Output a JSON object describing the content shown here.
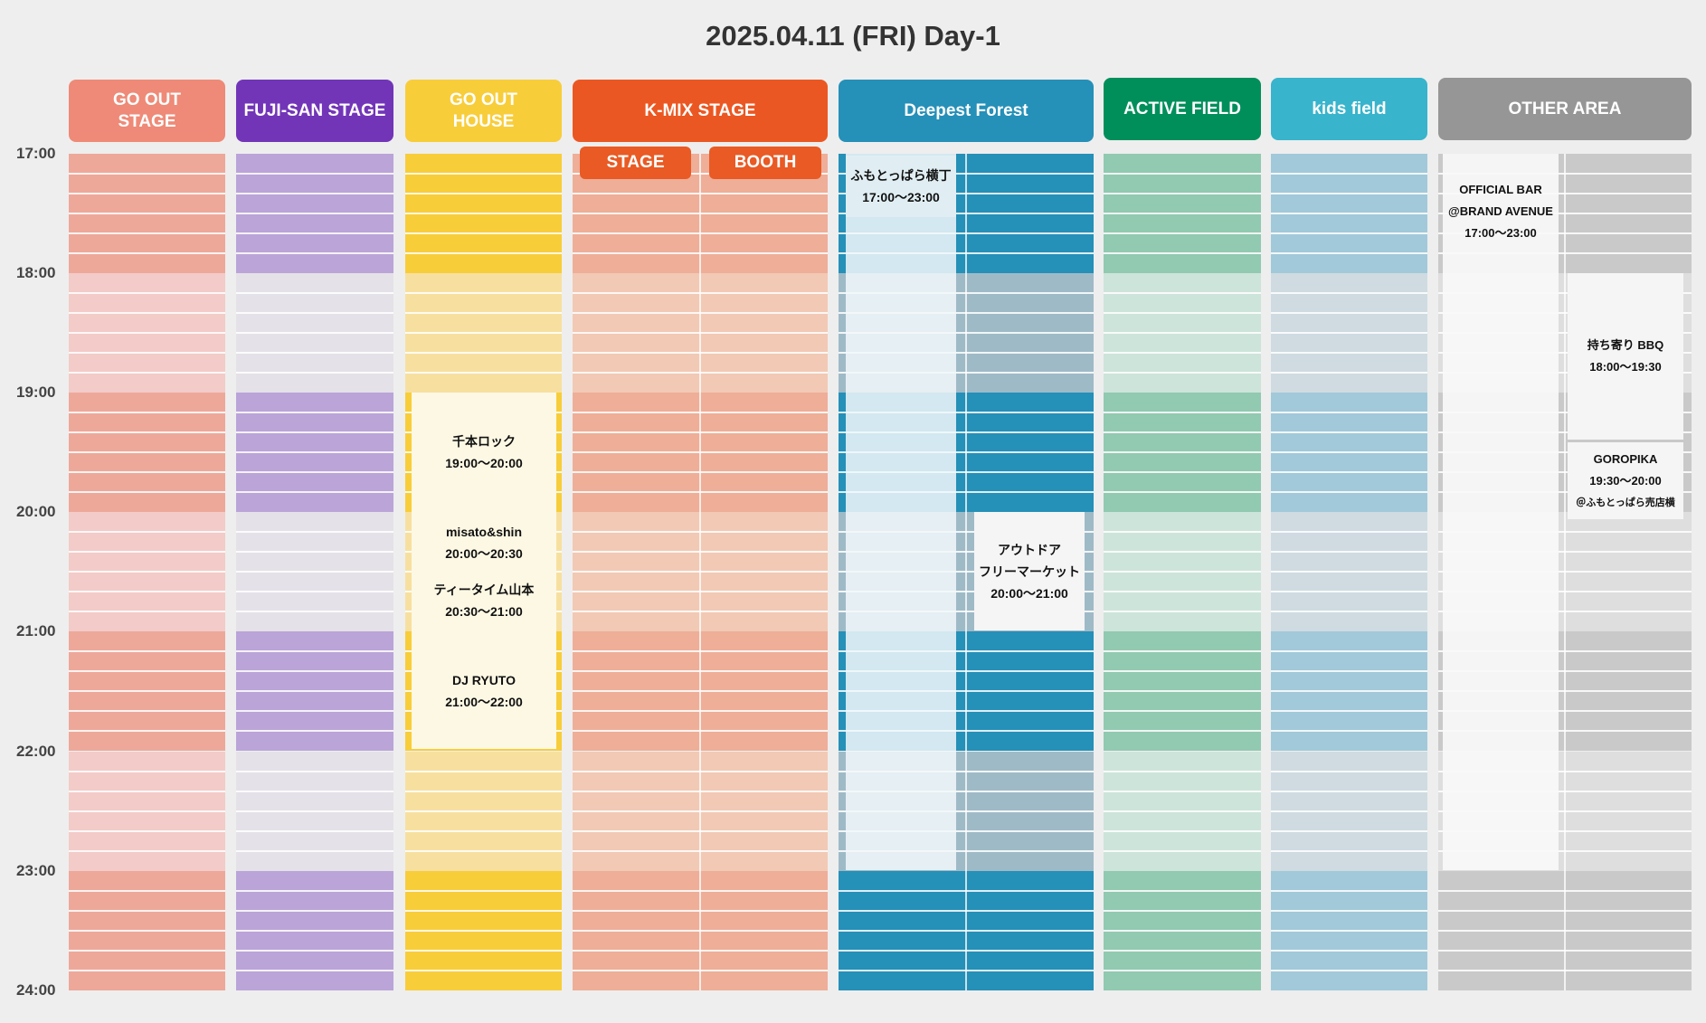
{
  "title": "2025.04.11 (FRI) Day-1",
  "times": [
    "17:00",
    "18:00",
    "19:00",
    "20:00",
    "21:00",
    "22:00",
    "23:00",
    "24:00"
  ],
  "columns": [
    {
      "id": "go-out-stage",
      "label": "GO OUT\nSTAGE",
      "header_color": "#ee8a77",
      "dark": "#eda89a",
      "light": "#f3cbc8"
    },
    {
      "id": "fuji-san-stage",
      "label": "FUJI-SAN STAGE",
      "header_color": "#7235b8",
      "dark": "#baa4d8",
      "light": "#e5e1e8"
    },
    {
      "id": "go-out-house",
      "label": "GO OUT\nHOUSE",
      "header_color": "#f8cd3a",
      "dark": "#f8cd3a",
      "light": "#f7e09f"
    },
    {
      "id": "k-mix-stage",
      "label": "K-MIX STAGE",
      "header_color": "#eb5722",
      "dark": "#eeae98",
      "light": "#f2c9b5"
    },
    {
      "id": "deepest-forest",
      "label": "Deepest Forest",
      "header_color": "#2590b8",
      "dark": "#2590b8",
      "light": "#9fbac7"
    },
    {
      "id": "active-field",
      "label": "ACTIVE FIELD",
      "header_color": "#008f5b",
      "dark": "#91c9b1",
      "light": "#cde4da"
    },
    {
      "id": "kids-field",
      "label": "kids field",
      "header_color": "#38b4cc",
      "dark": "#a1c9d9",
      "light": "#cfdbe1"
    },
    {
      "id": "other-area",
      "label": "OTHER AREA",
      "header_color": "#969696",
      "dark": "#c9c9c9",
      "light": "#dedede"
    }
  ],
  "kmix_tabs": {
    "stage": "STAGE",
    "booth": "BOOTH"
  },
  "events": {
    "senbon": {
      "name": "千本ロック",
      "time": "19:00〜20:00"
    },
    "misato": {
      "name": "misato&shin",
      "time": "20:00〜20:30"
    },
    "teatime": {
      "name": "ティータイム山本",
      "time": "20:30〜21:00"
    },
    "ryuto": {
      "name": "DJ RYUTO",
      "time": "21:00〜22:00"
    },
    "fumoto": {
      "name": "ふもとっぱら横丁",
      "time": "17:00〜23:00"
    },
    "outdoor": {
      "name1": "アウトドア",
      "name2": "フリーマーケット",
      "time": "20:00〜21:00"
    },
    "official_bar": {
      "name1": "OFFICIAL BAR",
      "name2": "@BRAND AVENUE",
      "time": "17:00〜23:00"
    },
    "bbq": {
      "name": "持ち寄り BBQ",
      "time": "18:00〜19:30"
    },
    "goropika": {
      "name": "GOROPIKA",
      "time": "19:30〜20:00",
      "place": "＠ふもとっぱら売店横"
    }
  }
}
